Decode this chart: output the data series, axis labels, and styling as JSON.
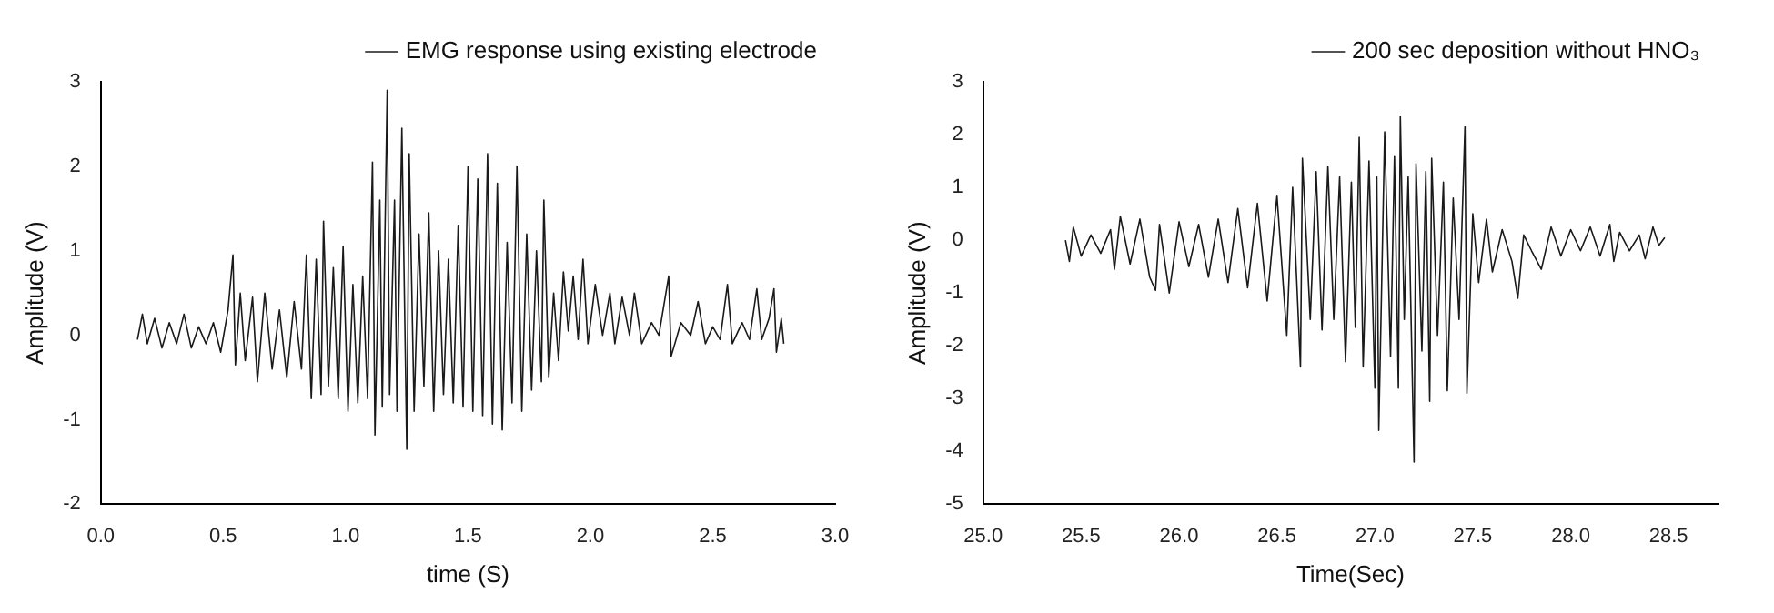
{
  "chart_data": [
    {
      "type": "line",
      "xlabel": "time (S)",
      "ylabel": "Amplitude (V)",
      "xlim": [
        0,
        3
      ],
      "ylim": [
        -2,
        3
      ],
      "xticks": [
        {
          "value": 0,
          "label": "0.0"
        },
        {
          "value": 0.5,
          "label": "0.5"
        },
        {
          "value": 1,
          "label": "1.0"
        },
        {
          "value": 1.5,
          "label": "1.5"
        },
        {
          "value": 2,
          "label": "2.0"
        },
        {
          "value": 2.5,
          "label": "2.5"
        },
        {
          "value": 3,
          "label": "3.0"
        }
      ],
      "yticks": [
        -2,
        -1,
        0,
        1,
        2,
        3
      ],
      "grid": false,
      "legend": "top right",
      "marker": "none",
      "line_style": "solid",
      "x": [
        0.15,
        0.17,
        0.19,
        0.22,
        0.25,
        0.28,
        0.31,
        0.34,
        0.37,
        0.4,
        0.43,
        0.46,
        0.49,
        0.52,
        0.54,
        0.55,
        0.57,
        0.59,
        0.62,
        0.64,
        0.67,
        0.7,
        0.73,
        0.76,
        0.79,
        0.82,
        0.84,
        0.86,
        0.88,
        0.9,
        0.91,
        0.93,
        0.95,
        0.97,
        0.99,
        1.01,
        1.03,
        1.05,
        1.07,
        1.09,
        1.11,
        1.12,
        1.14,
        1.15,
        1.17,
        1.18,
        1.2,
        1.21,
        1.23,
        1.25,
        1.26,
        1.28,
        1.3,
        1.32,
        1.34,
        1.36,
        1.38,
        1.4,
        1.42,
        1.44,
        1.46,
        1.48,
        1.5,
        1.52,
        1.54,
        1.56,
        1.58,
        1.6,
        1.62,
        1.64,
        1.66,
        1.68,
        1.7,
        1.72,
        1.74,
        1.76,
        1.78,
        1.8,
        1.81,
        1.83,
        1.85,
        1.87,
        1.89,
        1.91,
        1.93,
        1.95,
        1.97,
        1.99,
        2.02,
        2.05,
        2.08,
        2.1,
        2.13,
        2.16,
        2.18,
        2.21,
        2.25,
        2.28,
        2.32,
        2.33,
        2.37,
        2.41,
        2.44,
        2.47,
        2.5,
        2.53,
        2.56,
        2.58,
        2.62,
        2.65,
        2.68,
        2.7,
        2.73,
        2.75,
        2.76,
        2.78,
        2.79
      ],
      "series": [
        {
          "name": "EMG response using existing electrode",
          "color": "#1a1a1a",
          "values": [
            -0.05,
            0.25,
            -0.1,
            0.2,
            -0.15,
            0.15,
            -0.1,
            0.25,
            -0.15,
            0.1,
            -0.1,
            0.15,
            -0.2,
            0.3,
            0.95,
            -0.35,
            0.5,
            -0.3,
            0.45,
            -0.55,
            0.5,
            -0.4,
            0.3,
            -0.5,
            0.4,
            -0.4,
            0.95,
            -0.75,
            0.9,
            -0.7,
            1.35,
            -0.6,
            0.8,
            -0.75,
            1.05,
            -0.9,
            0.6,
            -0.8,
            0.7,
            -0.75,
            2.05,
            -1.18,
            1.6,
            -0.85,
            2.9,
            -0.7,
            1.6,
            -0.9,
            2.45,
            -1.35,
            2.15,
            -0.9,
            1.2,
            -0.6,
            1.45,
            -0.9,
            1.0,
            -0.7,
            0.9,
            -0.8,
            1.3,
            -0.85,
            2.0,
            -0.9,
            1.85,
            -0.95,
            2.15,
            -1.05,
            1.8,
            -1.12,
            1.1,
            -0.8,
            2.0,
            -0.9,
            1.2,
            -0.65,
            1.0,
            -0.55,
            1.6,
            -0.5,
            0.5,
            -0.3,
            0.75,
            0.05,
            0.7,
            -0.05,
            0.9,
            -0.1,
            0.6,
            0.0,
            0.5,
            -0.1,
            0.45,
            0.0,
            0.5,
            -0.1,
            0.15,
            0.0,
            0.7,
            -0.25,
            0.15,
            0.0,
            0.4,
            -0.1,
            0.1,
            -0.05,
            0.6,
            -0.1,
            0.15,
            -0.05,
            0.55,
            -0.05,
            0.2,
            0.55,
            -0.2,
            0.2,
            -0.1
          ]
        }
      ]
    },
    {
      "type": "line",
      "xlabel": "Time(Sec)",
      "ylabel": "Amplitude (V)",
      "xlim": [
        25,
        28.75
      ],
      "ylim": [
        -5,
        3
      ],
      "xticks": [
        {
          "value": 25,
          "label": "25.0"
        },
        {
          "value": 25.5,
          "label": "25.5"
        },
        {
          "value": 26,
          "label": "26.0"
        },
        {
          "value": 26.5,
          "label": "26.5"
        },
        {
          "value": 27,
          "label": "27.0"
        },
        {
          "value": 27.5,
          "label": "27.5"
        },
        {
          "value": 28,
          "label": "28.0"
        },
        {
          "value": 28.5,
          "label": "28.5"
        }
      ],
      "yticks": [
        -5,
        -4,
        -3,
        -2,
        -1,
        0,
        1,
        2,
        3
      ],
      "grid": false,
      "legend": "top right",
      "marker": "none",
      "line_style": "solid",
      "x": [
        25.42,
        25.44,
        25.46,
        25.5,
        25.55,
        25.6,
        25.65,
        25.67,
        25.7,
        25.75,
        25.8,
        25.85,
        25.88,
        25.9,
        25.95,
        26.0,
        26.05,
        26.1,
        26.15,
        26.2,
        26.25,
        26.3,
        26.35,
        26.4,
        26.45,
        26.5,
        26.55,
        26.58,
        26.62,
        26.63,
        26.67,
        26.7,
        26.73,
        26.76,
        26.79,
        26.82,
        26.85,
        26.88,
        26.9,
        26.92,
        26.94,
        26.97,
        27.0,
        27.01,
        27.02,
        27.05,
        27.08,
        27.1,
        27.12,
        27.13,
        27.15,
        27.17,
        27.2,
        27.21,
        27.24,
        27.26,
        27.28,
        27.29,
        27.32,
        27.35,
        27.37,
        27.4,
        27.43,
        27.46,
        27.47,
        27.5,
        27.53,
        27.57,
        27.6,
        27.65,
        27.7,
        27.73,
        27.76,
        27.8,
        27.85,
        27.9,
        27.95,
        28.0,
        28.05,
        28.1,
        28.15,
        28.2,
        28.22,
        28.25,
        28.3,
        28.35,
        28.38,
        28.42,
        28.45,
        28.48
      ],
      "series": [
        {
          "name": "200 sec deposition without HNO₃",
          "color": "#1a1a1a",
          "values": [
            0.0,
            -0.4,
            0.25,
            -0.3,
            0.1,
            -0.25,
            0.2,
            -0.55,
            0.45,
            -0.45,
            0.4,
            -0.7,
            -0.95,
            0.3,
            -1.0,
            0.35,
            -0.5,
            0.3,
            -0.7,
            0.4,
            -0.8,
            0.6,
            -0.9,
            0.7,
            -1.15,
            0.85,
            -1.8,
            1.0,
            -2.4,
            1.55,
            -1.5,
            1.3,
            -1.7,
            1.4,
            -1.5,
            1.2,
            -2.3,
            1.1,
            -1.65,
            1.95,
            -2.4,
            1.5,
            -2.8,
            1.2,
            -3.6,
            2.05,
            -2.2,
            1.6,
            -2.8,
            2.35,
            -1.5,
            1.2,
            -4.2,
            1.45,
            -2.1,
            1.3,
            -3.05,
            1.55,
            -1.8,
            1.1,
            -2.85,
            0.8,
            -1.5,
            2.15,
            -2.9,
            0.5,
            -0.8,
            0.4,
            -0.6,
            0.2,
            -0.4,
            -1.1,
            0.1,
            -0.2,
            -0.55,
            0.25,
            -0.3,
            0.2,
            -0.2,
            0.25,
            -0.3,
            0.3,
            -0.4,
            0.15,
            -0.2,
            0.1,
            -0.35,
            0.25,
            -0.1,
            0.05
          ]
        }
      ]
    }
  ]
}
